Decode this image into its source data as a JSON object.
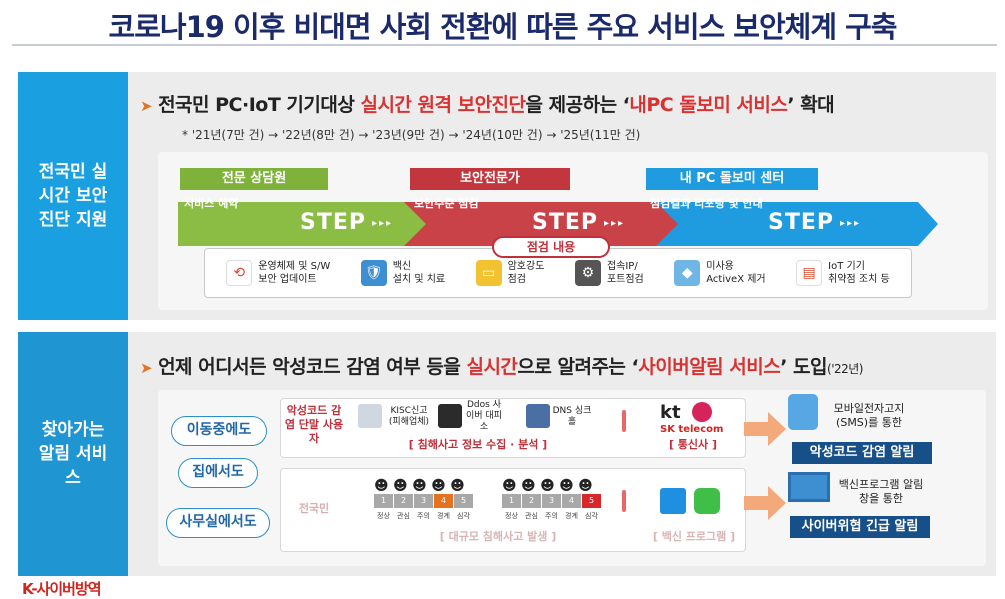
{
  "title": "코로나19 이후 비대면 사회 전환에 따른 주요 서비스 보안체계 구축",
  "section1": {
    "side_label": "전국민 실시간 보안진단 지원",
    "headline_pre": "전국민 PC·IoT 기기대상",
    "headline_red": "실시간 원격 보안진단",
    "headline_mid": "을 제공하는 ‘",
    "headline_red2": "내PC 돌보미 서비스",
    "headline_post": "’ 확대",
    "note": "* '21년(7만 건) → '22년(8만 건) → '23년(9만 건) → '24년(10만 건) → '25년(11만 건)",
    "stages": [
      {
        "label": "전문 상담원",
        "sub": "서비스 예약",
        "color": "#7fb23b"
      },
      {
        "label": "보안전문가",
        "sub": "보안수준 점검",
        "color": "#c2373e"
      },
      {
        "label": "내 PC 돌보미 센터",
        "sub": "점검결과 리포팅 및 안내",
        "color": "#1f9be0"
      }
    ],
    "step_text": "STEP",
    "step_dots": "▸▸▸",
    "check_label": "점검 내용",
    "check_items": [
      {
        "l1": "운영체제 및 S/W",
        "l2": "보안 업데이트",
        "icon": "update-icon"
      },
      {
        "l1": "백신",
        "l2": "설치 및 치료",
        "icon": "shield-icon"
      },
      {
        "l1": "암호강도",
        "l2": "점검",
        "icon": "password-card-icon"
      },
      {
        "l1": "접속IP/",
        "l2": "포트점검",
        "icon": "gear-icon"
      },
      {
        "l1": "미사용",
        "l2": "ActiveX 제거",
        "icon": "box-icon"
      },
      {
        "l1": "IoT 기기",
        "l2": "취약점 조치 등",
        "icon": "router-icon"
      }
    ]
  },
  "section2": {
    "side_label": "찾아가는 알림 서비스",
    "headline_pre": "언제 어디서든 악성코드 감염 여부 등을",
    "headline_red": "실시간",
    "headline_mid": "으로 알려주는 ‘",
    "headline_red2": "사이버알림 서비스",
    "headline_post": "’ 도입",
    "headline_year": "('22년)",
    "pills": [
      "이동중에도",
      "집에서도",
      "사무실에서도"
    ],
    "row1": {
      "who": "악성코드 감염 단말 사용자",
      "sources": [
        {
          "text": "KISC신고 (피해업체)"
        },
        {
          "text": "Ddos 사이버 대피소"
        },
        {
          "text": "DNS 싱크홀"
        }
      ],
      "collect_label": "[ 침해사고 정보 수집 · 분석 ]",
      "carrier_label": "[ 통신사 ]",
      "carrier1": "kt",
      "carrier2": "SK telecom",
      "result_desc": "모바일전자고지 (SMS)를 통한",
      "result_btn": "악성코드 감염 알림"
    },
    "row2": {
      "who": "전국민",
      "levels": [
        "1",
        "2",
        "3",
        "4",
        "5"
      ],
      "level_caps": [
        "정상",
        "관심",
        "주의",
        "경계",
        "심각"
      ],
      "collect_label": "[ 대규모 침해사고 발생 ]",
      "vendor_label": "[ 백신 프로그램 ]",
      "result_desc": "백신프로그램 알림창을 통한",
      "result_btn": "사이버위협 긴급 알림"
    }
  },
  "logo": {
    "part1": "K-사이버방역",
    "part2": ""
  }
}
